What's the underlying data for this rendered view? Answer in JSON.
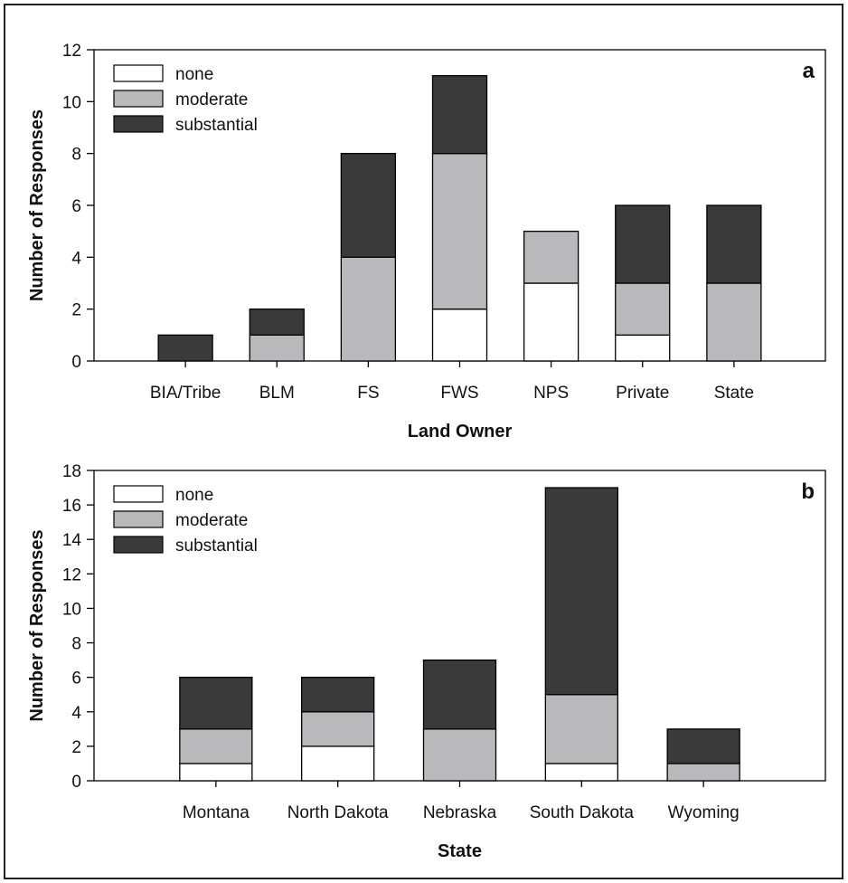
{
  "colors": {
    "none": "#ffffff",
    "moderate": "#b9b9bb",
    "substantial": "#3a3a3a",
    "stroke": "#000000"
  },
  "chart_data": [
    {
      "type": "bar",
      "stacked": true,
      "panel_label": "a",
      "xlabel": "Land Owner",
      "ylabel": "Number of Responses",
      "ylim": [
        0,
        12
      ],
      "yticks": [
        0,
        2,
        4,
        6,
        8,
        10,
        12
      ],
      "legend_position": "top-left",
      "categories": [
        "BIA/Tribe",
        "BLM",
        "FS",
        "FWS",
        "NPS",
        "Private",
        "State"
      ],
      "series": [
        {
          "name": "none",
          "values": [
            0,
            0,
            0,
            2,
            3,
            1,
            0
          ]
        },
        {
          "name": "moderate",
          "values": [
            0,
            1,
            4,
            6,
            2,
            2,
            3
          ]
        },
        {
          "name": "substantial",
          "values": [
            1,
            1,
            4,
            3,
            0,
            3,
            3
          ]
        }
      ]
    },
    {
      "type": "bar",
      "stacked": true,
      "panel_label": "b",
      "xlabel": "State",
      "ylabel": "Number of Responses",
      "ylim": [
        0,
        18
      ],
      "yticks": [
        0,
        2,
        4,
        6,
        8,
        10,
        12,
        14,
        16,
        18
      ],
      "legend_position": "top-left",
      "categories": [
        "Montana",
        "North Dakota",
        "Nebraska",
        "South Dakota",
        "Wyoming"
      ],
      "series": [
        {
          "name": "none",
          "values": [
            1,
            2,
            0,
            1,
            0
          ]
        },
        {
          "name": "moderate",
          "values": [
            2,
            2,
            3,
            4,
            1
          ]
        },
        {
          "name": "substantial",
          "values": [
            3,
            2,
            4,
            12,
            2
          ]
        }
      ]
    }
  ]
}
